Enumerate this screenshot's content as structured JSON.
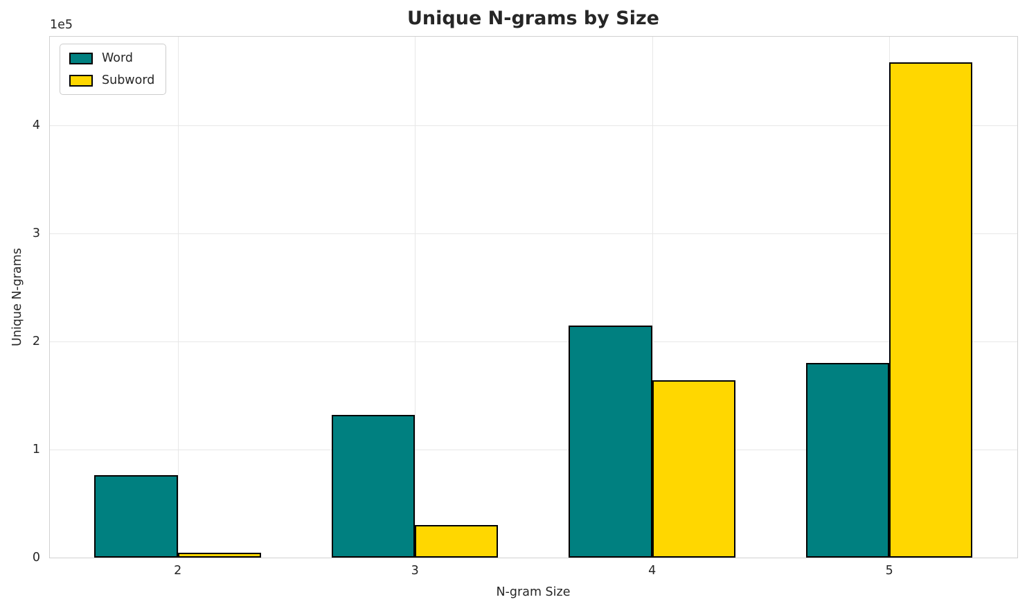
{
  "chart_data": {
    "type": "bar",
    "title": "Unique N-grams by Size",
    "xlabel": "N-gram Size",
    "ylabel": "Unique N-grams",
    "y_multiplier_label": "1e5",
    "categories": [
      "2",
      "3",
      "4",
      "5"
    ],
    "series": [
      {
        "name": "Word",
        "color": "#008080",
        "values": [
          76500,
          132000,
          215000,
          180000
        ]
      },
      {
        "name": "Subword",
        "color": "#FFD700",
        "values": [
          4500,
          30000,
          164000,
          458000
        ]
      }
    ],
    "ylim": [
      0,
      482000
    ],
    "yticks": {
      "values": [
        0,
        100000,
        200000,
        300000,
        400000
      ],
      "labels": [
        "0",
        "1",
        "2",
        "3",
        "4"
      ]
    },
    "grid": true,
    "legend_position": "upper left",
    "bar_edge_color": "#000000",
    "style_colors": {
      "grid": "#e7e7e7",
      "spine": "#d0d0d0",
      "text": "#262626"
    }
  }
}
